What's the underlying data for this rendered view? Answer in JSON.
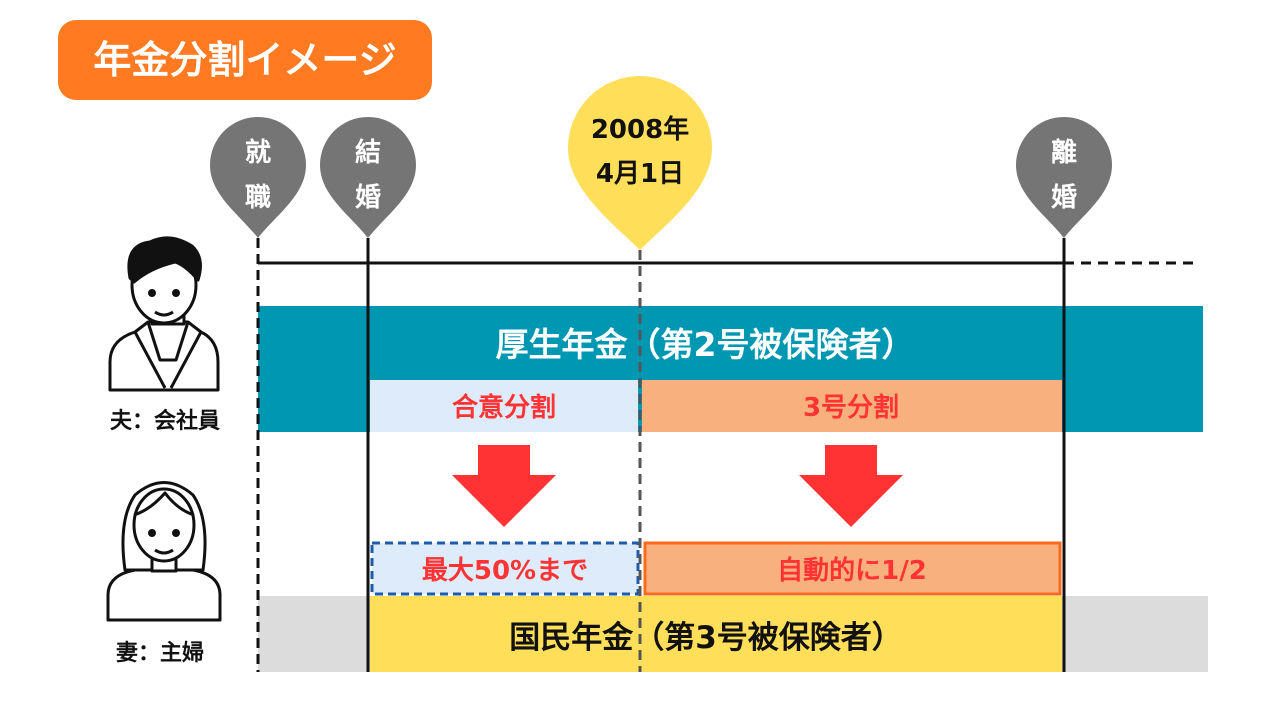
{
  "title": "年金分割イメージ",
  "milestones": {
    "employment": [
      "就",
      "職"
    ],
    "marriage": [
      "結",
      "婚"
    ],
    "date": [
      "2008年",
      "4月1日"
    ],
    "divorce": [
      "離",
      "婚"
    ]
  },
  "people": {
    "husband": "夫：会社員",
    "wife": "妻：主婦"
  },
  "bands": {
    "employees_pension": "厚生年金（第2号被保険者）",
    "national_pension": "国民年金（第3号被保険者）"
  },
  "splits": {
    "agreement": "合意分割",
    "category3": "3号分割",
    "agreement_result": "最大50%まで",
    "category3_result": "自動的に1/2"
  },
  "colors": {
    "title_bg": "#FF7A21",
    "pin_gray": "#757575",
    "pin_yellow": "#FFDE59",
    "teal": "#0097B2",
    "light_blue": "#DDEBFB",
    "salmon": "#F8B07F",
    "red": "#FF3333",
    "gray_band": "#DCDCDC"
  }
}
